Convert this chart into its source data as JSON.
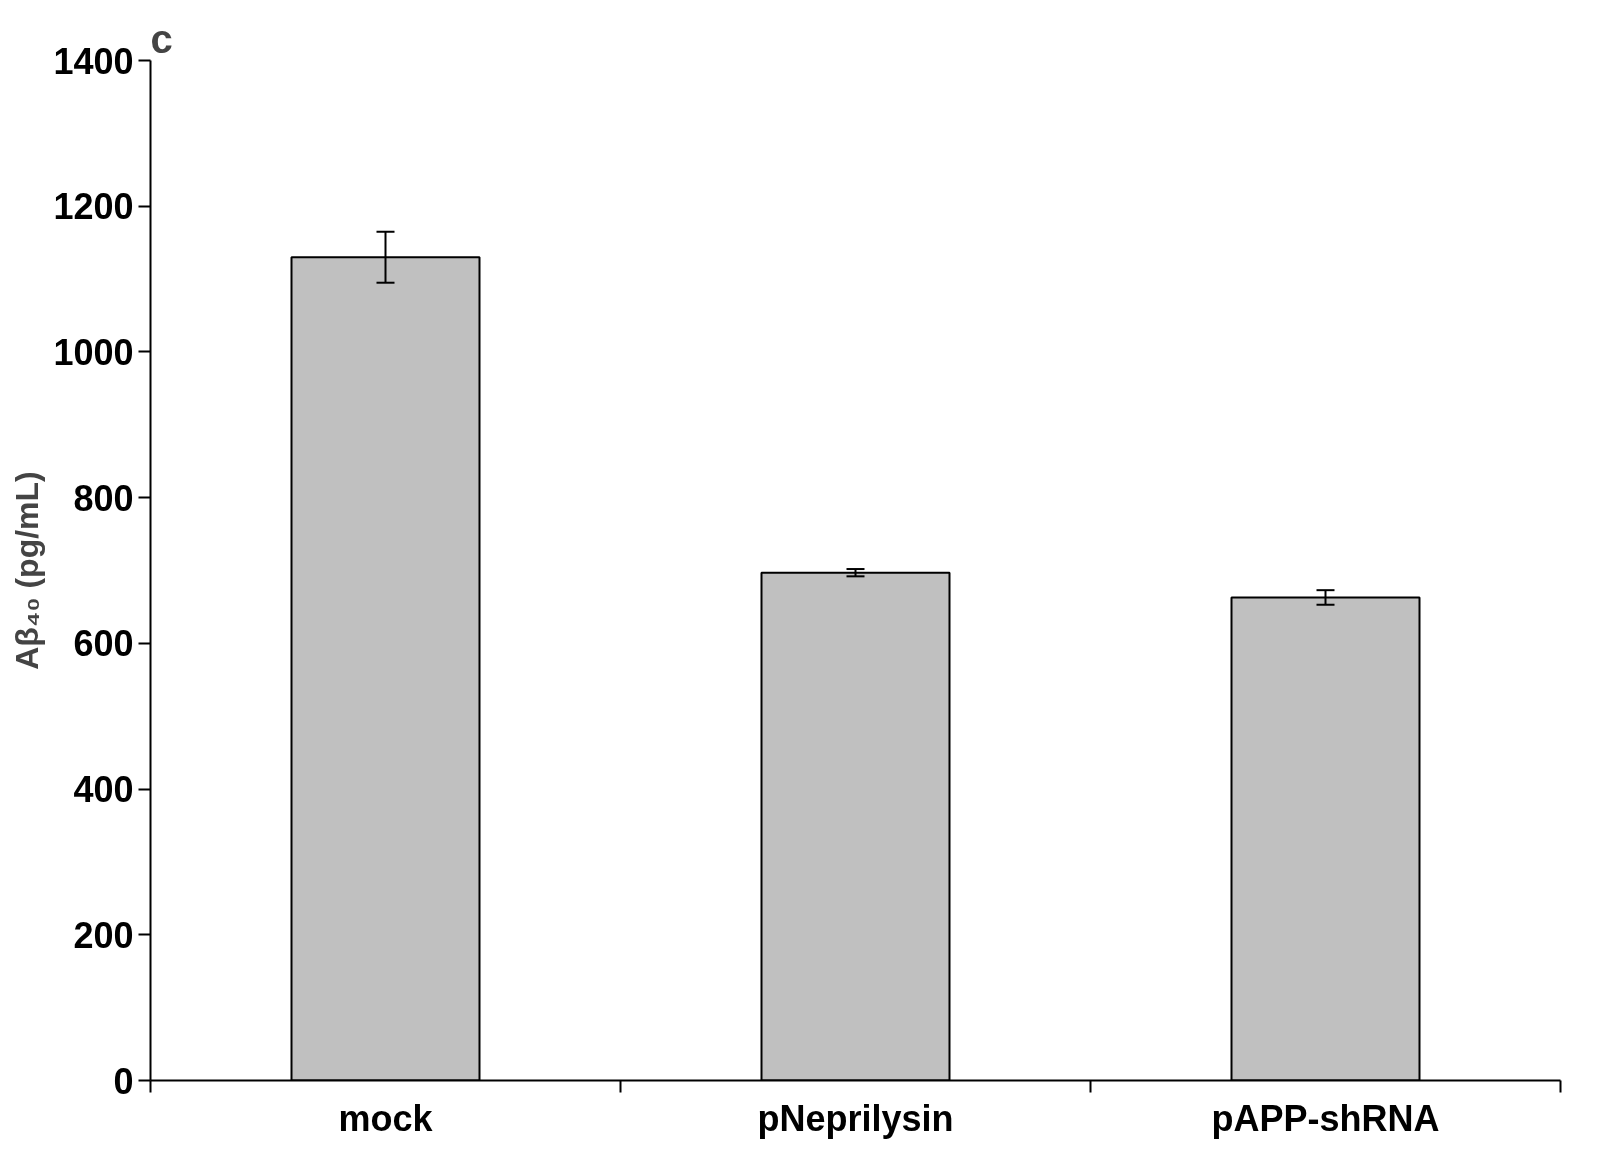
{
  "chart_data": {
    "type": "bar",
    "categories": [
      "mock",
      "pNeprilysin",
      "pAPP-shRNA"
    ],
    "values": [
      1130,
      697,
      663
    ],
    "errors": [
      35,
      5,
      10
    ],
    "color": "#c0c0c0",
    "ylabel": "Aβ₄₀ (pg/mL)",
    "ylim": [
      0,
      1400
    ],
    "yticks": [
      0,
      200,
      400,
      600,
      800,
      1000,
      1200,
      1400
    ],
    "annotations": [
      "c"
    ],
    "grid": false
  }
}
